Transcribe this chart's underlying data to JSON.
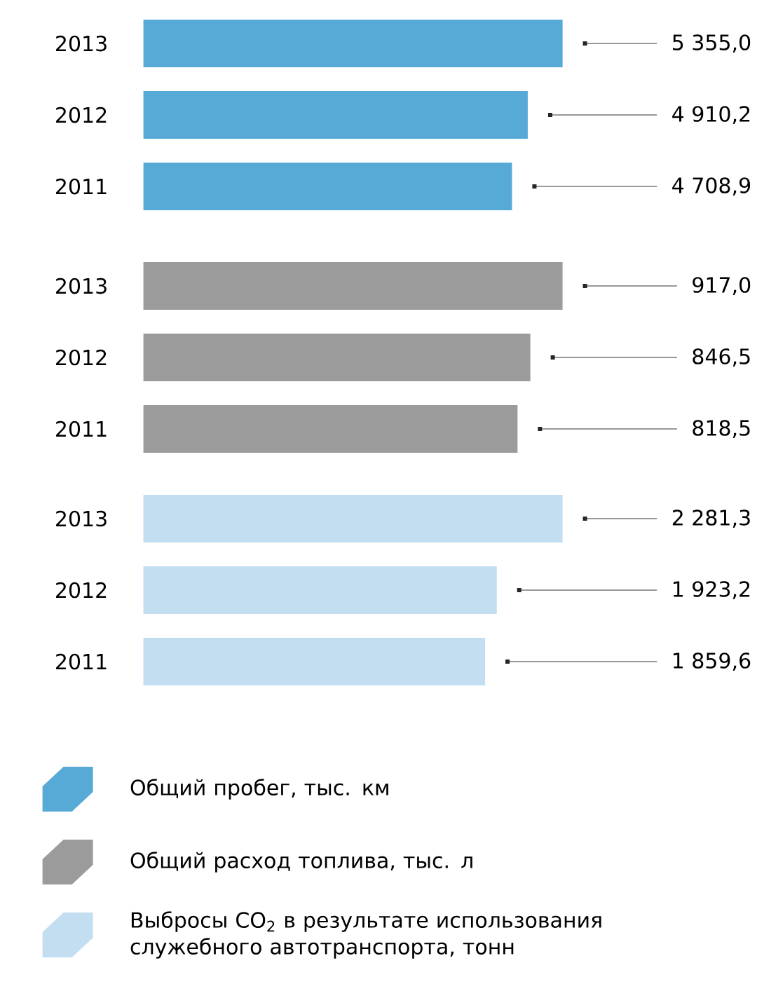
{
  "chart_data": [
    {
      "type": "bar",
      "orientation": "horizontal",
      "categories": [
        "2013",
        "2012",
        "2011"
      ],
      "xlim": [
        0,
        5355
      ],
      "tick_labels": "y",
      "legend": "bottom",
      "series": [
        {
          "name": "Общий пробег, тыс. км",
          "color": "#58aad6",
          "values": [
            5355.0,
            4910.2,
            4708.9
          ],
          "value_labels": [
            "5 355,0",
            "4 910,2",
            "4 708,9"
          ]
        }
      ]
    },
    {
      "type": "bar",
      "orientation": "horizontal",
      "categories": [
        "2013",
        "2012",
        "2011"
      ],
      "xlim": [
        0,
        917
      ],
      "tick_labels": "y",
      "legend": "bottom",
      "series": [
        {
          "name": "Общий расход топлива, тыс. л",
          "color": "#9b9b9b",
          "values": [
            917.0,
            846.5,
            818.5
          ],
          "value_labels": [
            "917,0",
            "846,5",
            "818,5"
          ]
        }
      ]
    },
    {
      "type": "bar",
      "orientation": "horizontal",
      "categories": [
        "2013",
        "2012",
        "2011"
      ],
      "xlim": [
        0,
        2281.3
      ],
      "tick_labels": "y",
      "legend": "bottom",
      "series": [
        {
          "name": "Выбросы CO$_{2}$ в результате использования служебного автотранспорта, тонн",
          "color": "#c3ddf1",
          "values": [
            2281.3,
            1923.2,
            1859.6
          ],
          "value_labels": [
            "2 281,3",
            "1 923,2",
            "1 859,6"
          ]
        }
      ]
    }
  ]
}
